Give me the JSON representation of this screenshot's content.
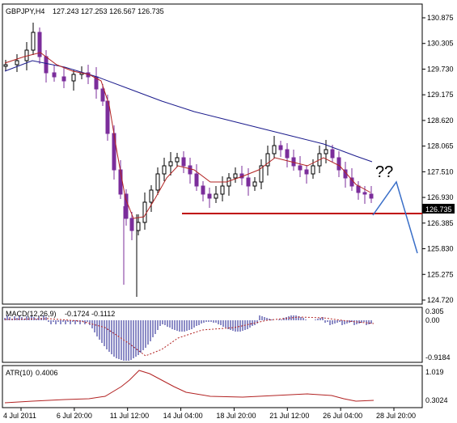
{
  "header": {
    "symbol": "GBPJPY,H4",
    "ohlc": "127.243 127.253 126.567 126.735"
  },
  "price_axis": {
    "labels": [
      "130.875",
      "130.305",
      "129.730",
      "129.175",
      "128.620",
      "128.065",
      "127.510",
      "126.930",
      "126.385",
      "125.830",
      "125.275",
      "124.720"
    ]
  },
  "last_price_label": "126.735",
  "annotation": "??",
  "macd": {
    "label": "MACD(12,26,9)",
    "values": "-0.1724 -0.1112",
    "axis_labels": [
      "0.305",
      "0.00",
      "-0.9184"
    ]
  },
  "atr": {
    "label": "ATR(10)",
    "value": "0.4006",
    "axis_labels": [
      "1.019",
      "0.3024"
    ]
  },
  "time_axis": {
    "labels": [
      "4 Jul 2011",
      "6 Jul 20:00",
      "11 Jul 12:00",
      "14 Jul 04:00",
      "18 Jul 20:00",
      "21 Jul 12:00",
      "26 Jul 04:00",
      "28 Jul 20:00"
    ]
  },
  "colors": {
    "bull_candle": "#000000",
    "bear_candle": "#7b2d9b",
    "ma_fast": "#b22222",
    "ma_slow": "#1a1a8c",
    "support_line": "#c00000",
    "projection": "#3a6fc8",
    "macd_bars": "#1a1a8c",
    "macd_signal": "#b22222",
    "atr_line": "#b22222"
  }
}
